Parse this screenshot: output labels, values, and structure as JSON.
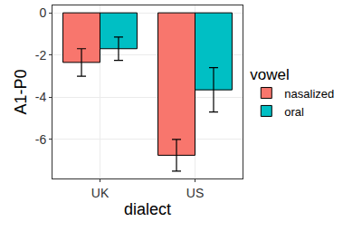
{
  "chart_data": {
    "type": "bar",
    "categories": [
      "UK",
      "US"
    ],
    "series": [
      {
        "name": "nasalized",
        "color": "#F8766D",
        "values": [
          -2.35,
          -6.75
        ],
        "errors": [
          0.65,
          0.75
        ]
      },
      {
        "name": "oral",
        "color": "#00BFC4",
        "values": [
          -1.7,
          -3.65
        ],
        "errors": [
          0.55,
          1.05
        ]
      }
    ],
    "x_label": "dialect",
    "y_label": "A1-P0",
    "legend_title": "vowel",
    "ylim": [
      -7.85,
      0.35
    ],
    "yticks": [
      -6,
      -4,
      -2,
      0
    ],
    "grid": true,
    "legend": "right"
  }
}
